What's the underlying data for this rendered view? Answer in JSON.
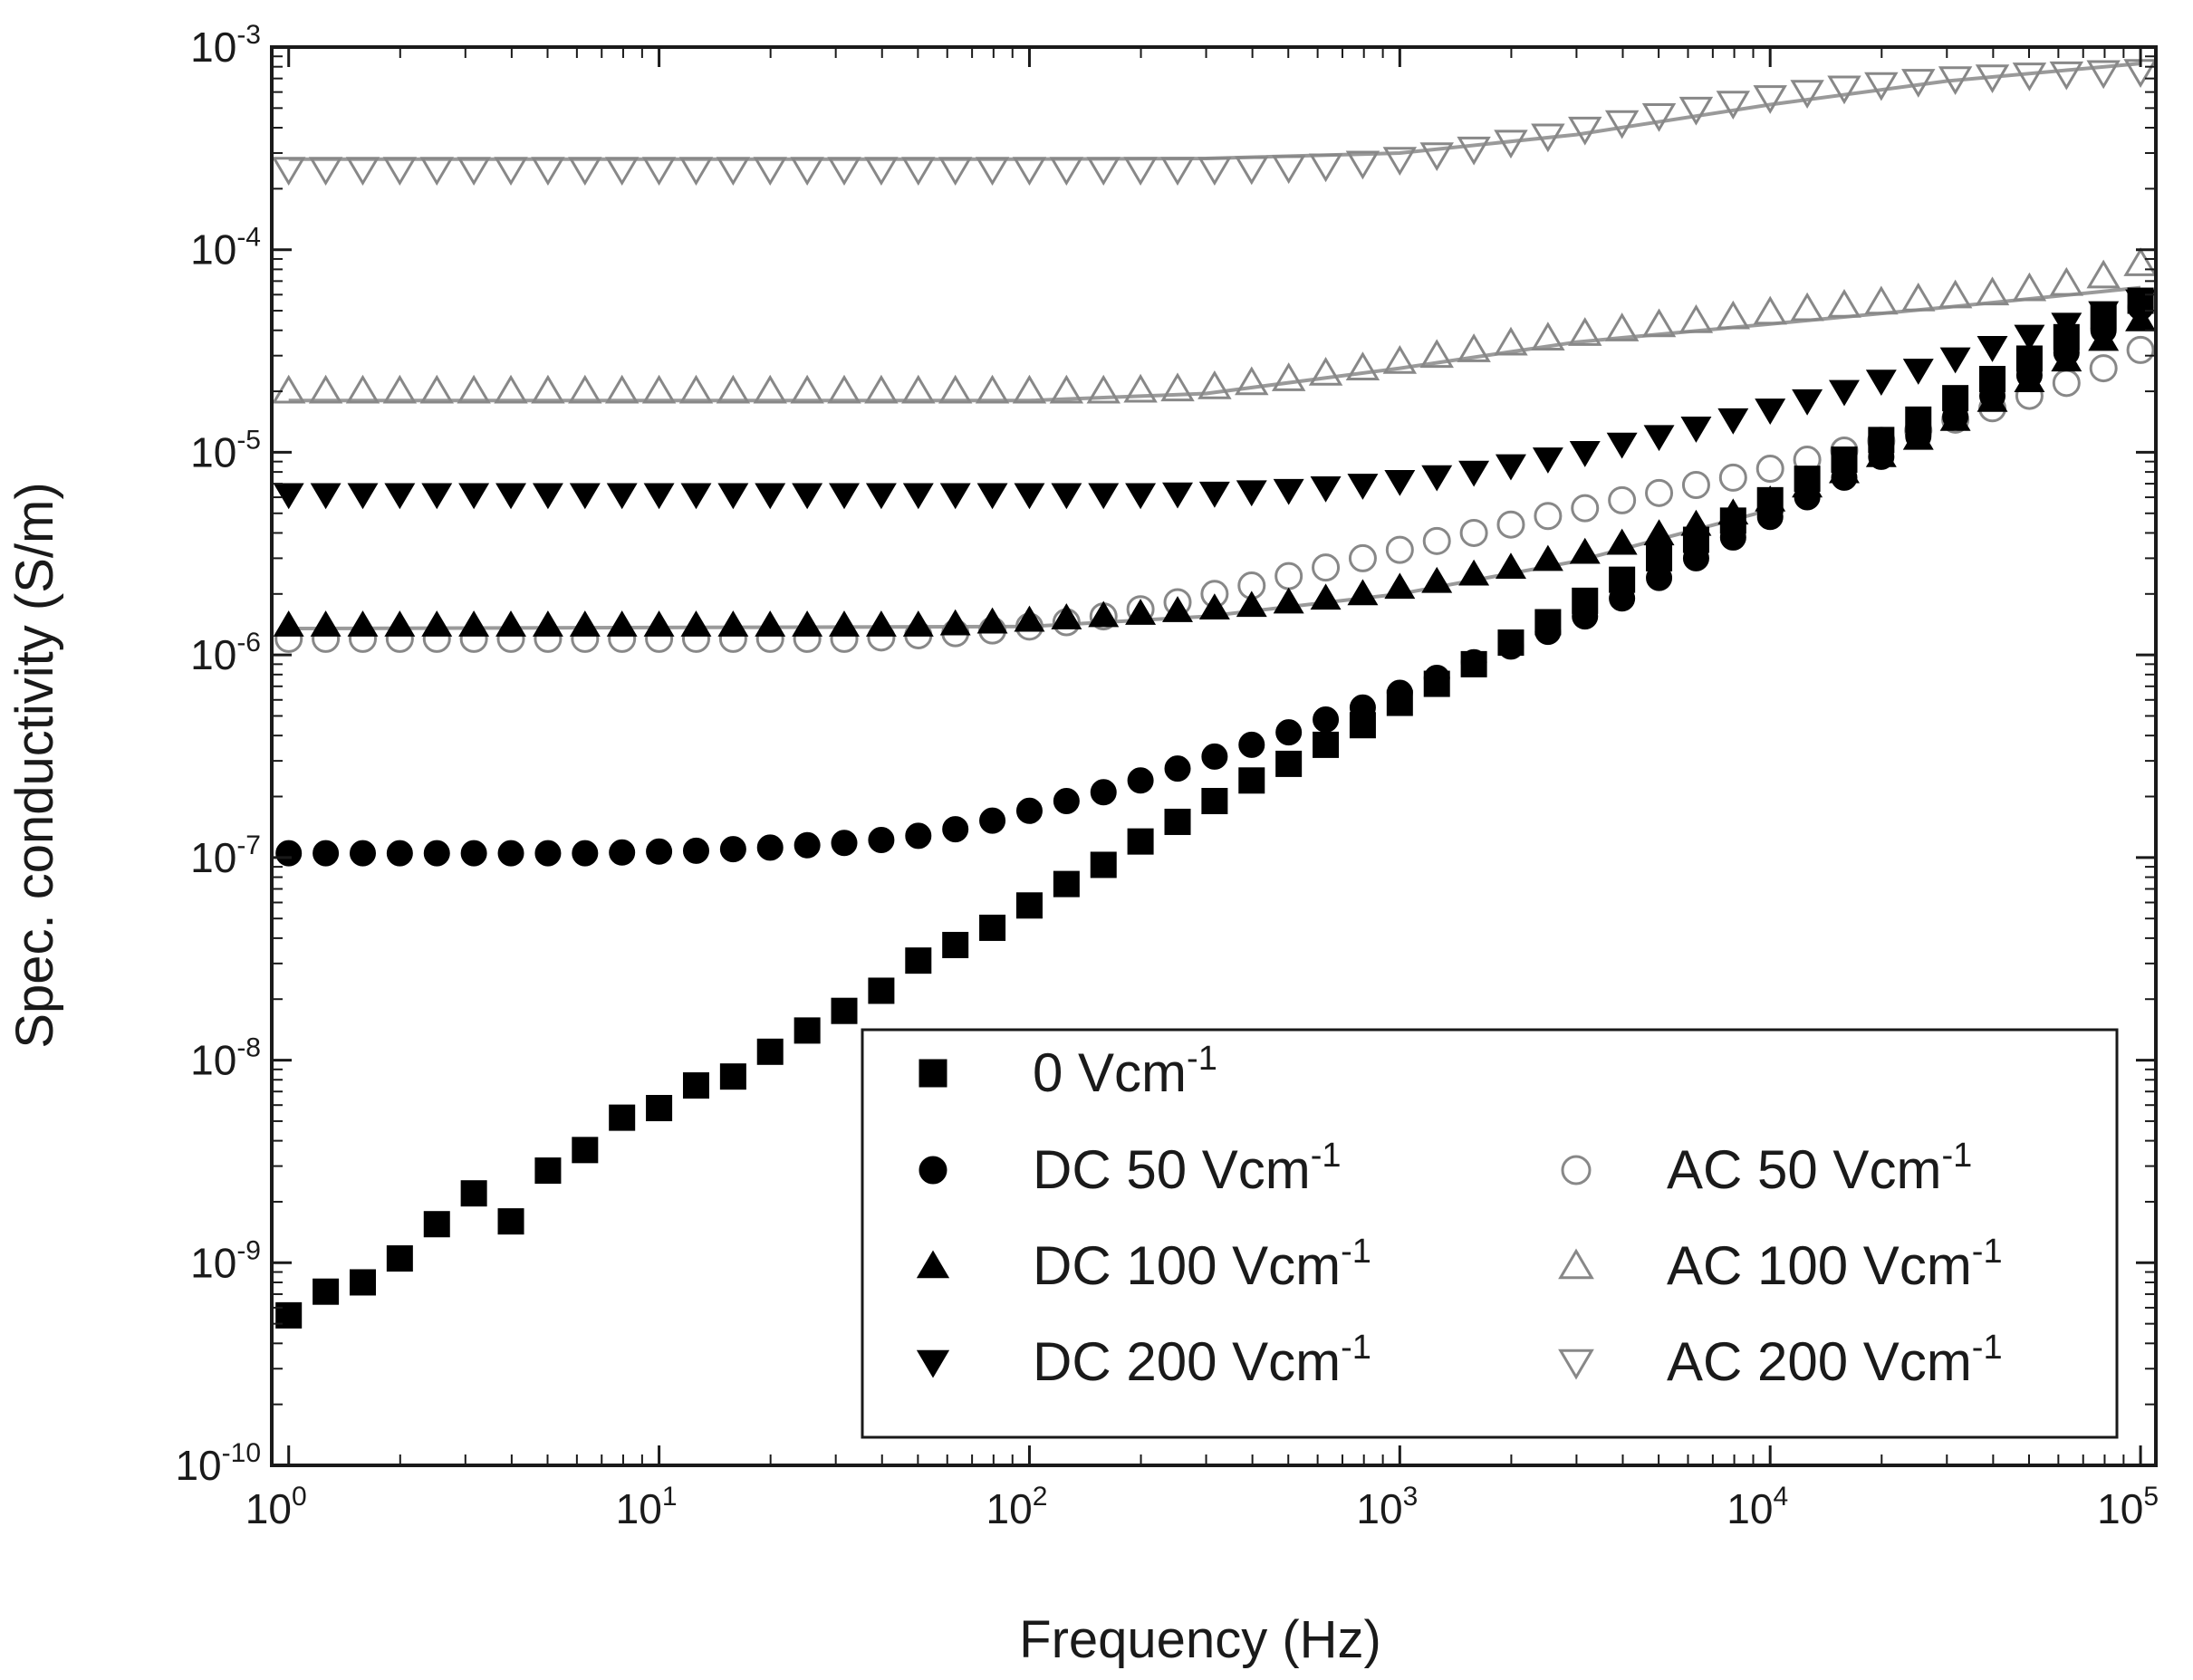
{
  "chart_data": {
    "type": "scatter",
    "title": "",
    "xlabel": "Frequency (Hz)",
    "ylabel": "Spec. conductivity (S/m)",
    "x_scale": "log",
    "y_scale": "log",
    "xlim": [
      0.9,
      110000
    ],
    "ylim": [
      1e-10,
      0.001
    ],
    "x_ticks": [
      {
        "value": 1,
        "base": "10",
        "exp": "0"
      },
      {
        "value": 10,
        "base": "10",
        "exp": "1"
      },
      {
        "value": 100,
        "base": "10",
        "exp": "2"
      },
      {
        "value": 1000,
        "base": "10",
        "exp": "3"
      },
      {
        "value": 10000,
        "base": "10",
        "exp": "4"
      },
      {
        "value": 100000,
        "base": "10",
        "exp": "5"
      }
    ],
    "y_ticks": [
      {
        "value": 1e-10,
        "base": "10",
        "exp": "-10"
      },
      {
        "value": 1e-09,
        "base": "10",
        "exp": "-9"
      },
      {
        "value": 1e-08,
        "base": "10",
        "exp": "-8"
      },
      {
        "value": 1e-07,
        "base": "10",
        "exp": "-7"
      },
      {
        "value": 1e-06,
        "base": "10",
        "exp": "-6"
      },
      {
        "value": 1e-05,
        "base": "10",
        "exp": "-5"
      },
      {
        "value": 0.0001,
        "base": "10",
        "exp": "-4"
      },
      {
        "value": 0.001,
        "base": "10",
        "exp": "-3"
      }
    ],
    "grid": false,
    "legend_position": "bottom-right",
    "colors": {
      "filled": "#000000",
      "open": "#888888",
      "fit": "#9a9a9a",
      "axis": "#1a1a1a"
    },
    "x": [
      1,
      1.259,
      1.585,
      1.995,
      2.512,
      3.162,
      3.981,
      5.012,
      6.31,
      7.943,
      10,
      12.59,
      15.85,
      19.95,
      25.12,
      31.62,
      39.81,
      50.12,
      63.1,
      79.43,
      100,
      125.9,
      158.5,
      199.5,
      251.2,
      316.2,
      398.1,
      501.2,
      631,
      794.3,
      1000,
      1259,
      1585,
      1995,
      2512,
      3162,
      3981,
      5012,
      6310,
      7943,
      10000,
      12590,
      15850,
      19950,
      25120,
      31620,
      39810,
      50120,
      63100,
      79430,
      100000
    ],
    "series": [
      {
        "name": "0 Vcm",
        "label_base": "0 Vcm",
        "label_exp": "-1",
        "marker": "square",
        "filled": true,
        "values": [
          5.5e-10,
          7.2e-10,
          8e-10,
          1.05e-09,
          1.55e-09,
          2.2e-09,
          1.6e-09,
          2.85e-09,
          3.6e-09,
          5.2e-09,
          5.8e-09,
          7.5e-09,
          8.3e-09,
          1.1e-08,
          1.4e-08,
          1.75e-08,
          2.2e-08,
          3.1e-08,
          3.7e-08,
          4.5e-08,
          5.8e-08,
          7.4e-08,
          9.2e-08,
          1.2e-07,
          1.5e-07,
          1.9e-07,
          2.4e-07,
          2.9e-07,
          3.6e-07,
          4.5e-07,
          5.8e-07,
          7.2e-07,
          9e-07,
          1.15e-06,
          1.45e-06,
          1.85e-06,
          2.35e-06,
          3e-06,
          3.7e-06,
          4.6e-06,
          5.8e-06,
          7.4e-06,
          9.2e-06,
          1.15e-05,
          1.45e-05,
          1.85e-05,
          2.3e-05,
          2.9e-05,
          3.7e-05,
          4.7e-05,
          5.6e-05
        ]
      },
      {
        "name": "DC 50 Vcm",
        "label_base": "DC 50 Vcm",
        "label_exp": "-1",
        "marker": "circle",
        "filled": true,
        "values": [
          1.05e-07,
          1.05e-07,
          1.05e-07,
          1.05e-07,
          1.05e-07,
          1.05e-07,
          1.05e-07,
          1.05e-07,
          1.05e-07,
          1.06e-07,
          1.07e-07,
          1.08e-07,
          1.1e-07,
          1.12e-07,
          1.15e-07,
          1.18e-07,
          1.22e-07,
          1.28e-07,
          1.38e-07,
          1.52e-07,
          1.7e-07,
          1.9e-07,
          2.1e-07,
          2.4e-07,
          2.75e-07,
          3.15e-07,
          3.6e-07,
          4.15e-07,
          4.8e-07,
          5.5e-07,
          6.5e-07,
          7.7e-07,
          9.2e-07,
          1.1e-06,
          1.3e-06,
          1.55e-06,
          1.9e-06,
          2.4e-06,
          3e-06,
          3.8e-06,
          4.8e-06,
          6e-06,
          7.5e-06,
          9.5e-06,
          1.2e-05,
          1.5e-05,
          1.9e-05,
          2.4e-05,
          3.1e-05,
          4e-05,
          5.2e-05
        ]
      },
      {
        "name": "DC 100 Vcm",
        "label_base": "DC 100 Vcm",
        "label_exp": "-1",
        "marker": "triangle-up",
        "filled": true,
        "values": [
          1.4e-06,
          1.4e-06,
          1.4e-06,
          1.4e-06,
          1.4e-06,
          1.4e-06,
          1.4e-06,
          1.4e-06,
          1.4e-06,
          1.4e-06,
          1.4e-06,
          1.4e-06,
          1.4e-06,
          1.4e-06,
          1.4e-06,
          1.4e-06,
          1.4e-06,
          1.4e-06,
          1.42e-06,
          1.45e-06,
          1.48e-06,
          1.52e-06,
          1.56e-06,
          1.6e-06,
          1.65e-06,
          1.7e-06,
          1.75e-06,
          1.82e-06,
          1.9e-06,
          2e-06,
          2.15e-06,
          2.3e-06,
          2.5e-06,
          2.7e-06,
          2.95e-06,
          3.2e-06,
          3.55e-06,
          3.95e-06,
          4.4e-06,
          5e-06,
          5.8e-06,
          6.8e-06,
          8e-06,
          9.6e-06,
          1.17e-05,
          1.45e-05,
          1.8e-05,
          2.25e-05,
          2.85e-05,
          3.6e-05,
          4.5e-05
        ]
      },
      {
        "name": "DC 200 Vcm",
        "label_base": "DC 200 Vcm",
        "label_exp": "-1",
        "marker": "triangle-down",
        "filled": true,
        "values": [
          6.2e-06,
          6.2e-06,
          6.2e-06,
          6.2e-06,
          6.2e-06,
          6.2e-06,
          6.2e-06,
          6.2e-06,
          6.2e-06,
          6.2e-06,
          6.2e-06,
          6.2e-06,
          6.2e-06,
          6.2e-06,
          6.2e-06,
          6.2e-06,
          6.2e-06,
          6.2e-06,
          6.2e-06,
          6.2e-06,
          6.2e-06,
          6.2e-06,
          6.2e-06,
          6.2e-06,
          6.25e-06,
          6.3e-06,
          6.4e-06,
          6.5e-06,
          6.7e-06,
          6.9e-06,
          7.2e-06,
          7.6e-06,
          8e-06,
          8.6e-06,
          9.3e-06,
          1e-05,
          1.1e-05,
          1.2e-05,
          1.32e-05,
          1.45e-05,
          1.62e-05,
          1.8e-05,
          2e-05,
          2.25e-05,
          2.55e-05,
          2.9e-05,
          3.3e-05,
          3.75e-05,
          4.3e-05,
          4.9e-05,
          5.6e-05
        ]
      },
      {
        "name": "AC 50 Vcm",
        "label_base": "AC 50 Vcm",
        "label_exp": "-1",
        "marker": "circle",
        "filled": false,
        "values": [
          1.2e-06,
          1.2e-06,
          1.2e-06,
          1.2e-06,
          1.2e-06,
          1.2e-06,
          1.2e-06,
          1.2e-06,
          1.2e-06,
          1.2e-06,
          1.2e-06,
          1.2e-06,
          1.2e-06,
          1.2e-06,
          1.2e-06,
          1.2e-06,
          1.22e-06,
          1.25e-06,
          1.28e-06,
          1.32e-06,
          1.38e-06,
          1.45e-06,
          1.55e-06,
          1.68e-06,
          1.82e-06,
          2e-06,
          2.2e-06,
          2.45e-06,
          2.7e-06,
          3e-06,
          3.3e-06,
          3.65e-06,
          4e-06,
          4.4e-06,
          4.85e-06,
          5.3e-06,
          5.8e-06,
          6.3e-06,
          6.9e-06,
          7.5e-06,
          8.3e-06,
          9.2e-06,
          1.02e-05,
          1.14e-05,
          1.28e-05,
          1.45e-05,
          1.65e-05,
          1.9e-05,
          2.2e-05,
          2.6e-05,
          3.2e-05
        ]
      },
      {
        "name": "AC 100 Vcm",
        "label_base": "AC 100 Vcm",
        "label_exp": "-1",
        "marker": "triangle-up",
        "filled": false,
        "values": [
          2e-05,
          2e-05,
          2e-05,
          2e-05,
          2e-05,
          2e-05,
          2e-05,
          2e-05,
          2e-05,
          2e-05,
          2e-05,
          2e-05,
          2e-05,
          2e-05,
          2e-05,
          2e-05,
          2e-05,
          2e-05,
          2e-05,
          2e-05,
          2e-05,
          2e-05,
          2e-05,
          2.02e-05,
          2.05e-05,
          2.1e-05,
          2.2e-05,
          2.3e-05,
          2.45e-05,
          2.6e-05,
          2.8e-05,
          3e-05,
          3.2e-05,
          3.45e-05,
          3.65e-05,
          3.85e-05,
          4.05e-05,
          4.25e-05,
          4.45e-05,
          4.65e-05,
          4.9e-05,
          5.1e-05,
          5.3e-05,
          5.5e-05,
          5.7e-05,
          5.9e-05,
          6.1e-05,
          6.4e-05,
          6.8e-05,
          7.4e-05,
          8.5e-05
        ]
      },
      {
        "name": "AC 200 Vcm",
        "label_base": "AC 200 Vcm",
        "label_exp": "-1",
        "marker": "triangle-down",
        "filled": false,
        "values": [
          0.00025,
          0.00025,
          0.00025,
          0.00025,
          0.00025,
          0.00025,
          0.00025,
          0.00025,
          0.00025,
          0.00025,
          0.00025,
          0.00025,
          0.00025,
          0.00025,
          0.00025,
          0.00025,
          0.00025,
          0.00025,
          0.00025,
          0.00025,
          0.00025,
          0.00025,
          0.00025,
          0.00025,
          0.00025,
          0.00025,
          0.000252,
          0.000255,
          0.00026,
          0.000268,
          0.00028,
          0.000295,
          0.000315,
          0.00034,
          0.000365,
          0.000395,
          0.000425,
          0.00046,
          0.000495,
          0.00053,
          0.000565,
          0.0006,
          0.00063,
          0.000655,
          0.00068,
          0.0007,
          0.000715,
          0.00073,
          0.00074,
          0.00075,
          0.00076
        ]
      }
    ],
    "fit_lines": [
      {
        "name": "fit-ac-200",
        "x": [
          1,
          100,
          300,
          1000,
          3000,
          10000,
          30000,
          100000
        ],
        "values": [
          0.00028,
          0.00028,
          0.000282,
          0.0003,
          0.00037,
          0.00052,
          0.00068,
          0.00083
        ]
      },
      {
        "name": "fit-ac-100",
        "x": [
          1,
          100,
          300,
          1000,
          3000,
          10000,
          30000,
          100000
        ],
        "values": [
          1.8e-05,
          1.8e-05,
          1.95e-05,
          2.6e-05,
          3.5e-05,
          4.3e-05,
          5.2e-05,
          6.5e-05
        ]
      },
      {
        "name": "fit-dc-100",
        "x": [
          1,
          100,
          300,
          1000,
          3000,
          10000
        ],
        "values": [
          1.35e-06,
          1.38e-06,
          1.55e-06,
          2e-06,
          2.9e-06,
          5.2e-06
        ]
      }
    ]
  }
}
